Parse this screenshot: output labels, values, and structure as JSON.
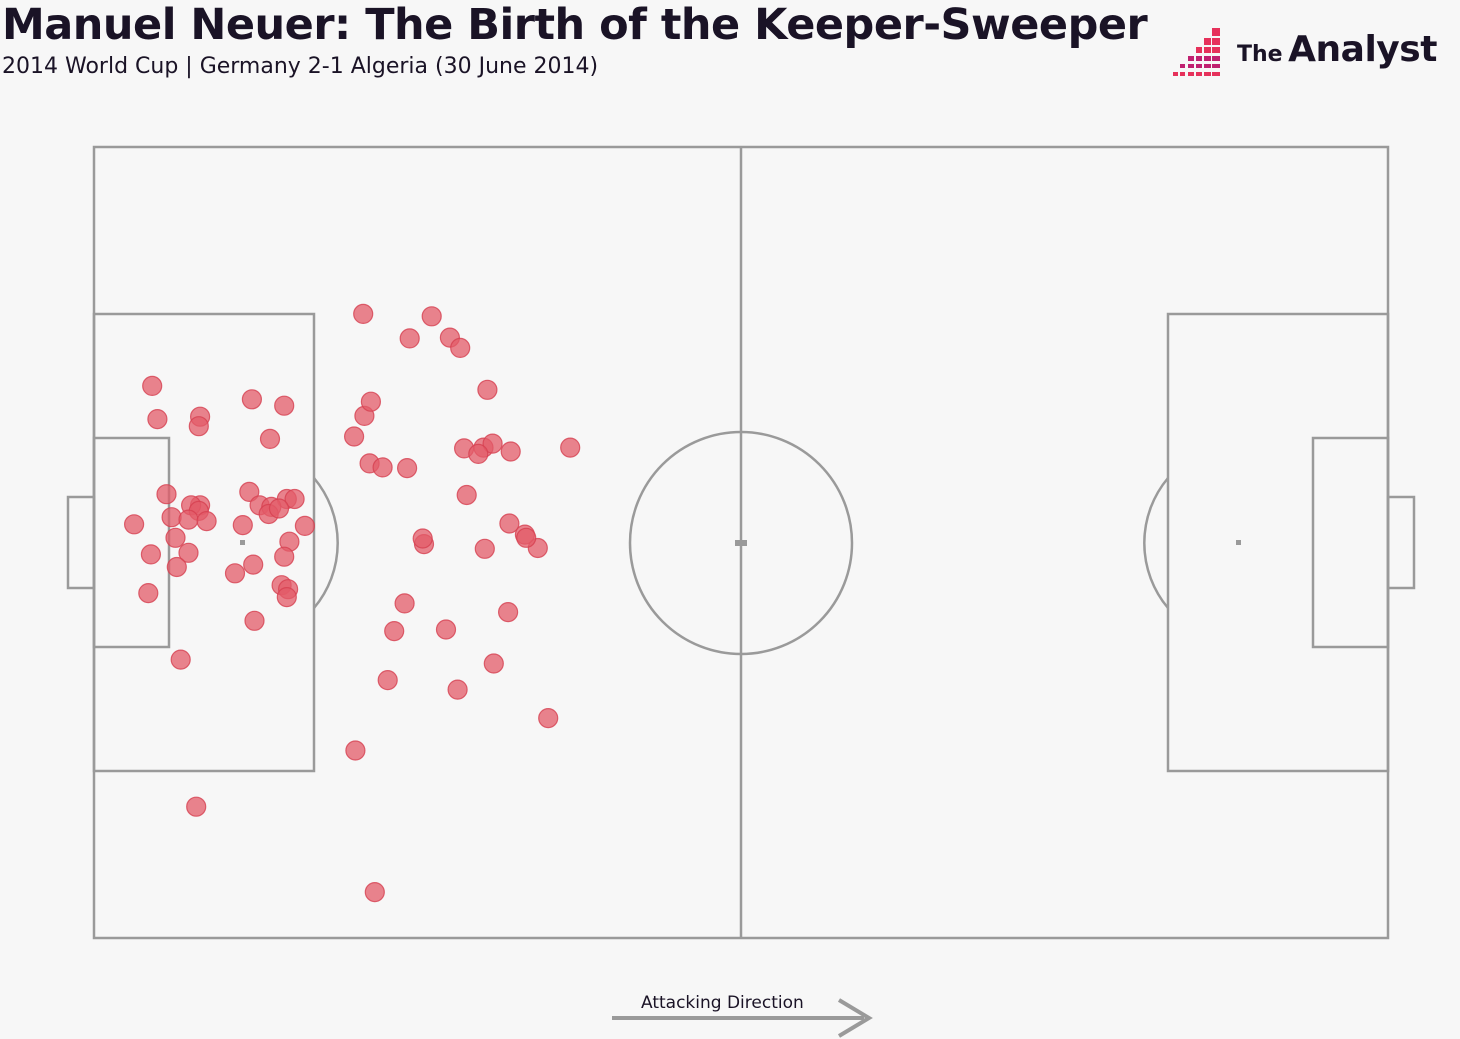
{
  "header": {
    "title": "Manuel Neuer: The Birth of the Keeper-Sweeper",
    "subtitle": "2014 World Cup | Germany 2-1 Algeria (30 June 2014)"
  },
  "logo": {
    "word1": "The",
    "word2": "Analyst",
    "icon": "bar-blocks-logo-icon",
    "color_primary": "#e6315b",
    "color_secondary": "#c02070"
  },
  "footer": {
    "attacking_direction_label": "Attacking Direction",
    "icon": "arrow-right-icon"
  },
  "colors": {
    "background": "#f7f7f7",
    "pitch_lines": "#9a9a9a",
    "marker_fill": "#e35b68",
    "marker_stroke": "#d64050"
  },
  "chart_data": {
    "type": "scatter",
    "background": "football pitch (horizontal)",
    "pitch": {
      "x_range": [
        0,
        100
      ],
      "y_range": [
        0,
        100
      ]
    },
    "points": [
      {
        "x": 20.8,
        "y": 78.9
      },
      {
        "x": 26.1,
        "y": 78.6
      },
      {
        "x": 24.4,
        "y": 75.8
      },
      {
        "x": 4.5,
        "y": 69.8
      },
      {
        "x": 12.2,
        "y": 68.1
      },
      {
        "x": 14.7,
        "y": 67.3
      },
      {
        "x": 4.9,
        "y": 65.6
      },
      {
        "x": 8.2,
        "y": 65.9
      },
      {
        "x": 8.1,
        "y": 64.7
      },
      {
        "x": 20.9,
        "y": 66.0
      },
      {
        "x": 13.6,
        "y": 63.1
      },
      {
        "x": 20.1,
        "y": 63.4
      },
      {
        "x": 30.1,
        "y": 62.0
      },
      {
        "x": 21.3,
        "y": 60.0
      },
      {
        "x": 22.3,
        "y": 59.5
      },
      {
        "x": 24.2,
        "y": 59.4
      },
      {
        "x": 5.6,
        "y": 56.1
      },
      {
        "x": 12.0,
        "y": 56.4
      },
      {
        "x": 14.9,
        "y": 55.5
      },
      {
        "x": 8.2,
        "y": 54.7
      },
      {
        "x": 7.5,
        "y": 54.7
      },
      {
        "x": 8.1,
        "y": 54.0
      },
      {
        "x": 6.0,
        "y": 53.2
      },
      {
        "x": 12.8,
        "y": 54.7
      },
      {
        "x": 13.7,
        "y": 54.5
      },
      {
        "x": 15.5,
        "y": 55.5
      },
      {
        "x": 13.5,
        "y": 53.6
      },
      {
        "x": 7.3,
        "y": 52.9
      },
      {
        "x": 8.7,
        "y": 52.7
      },
      {
        "x": 3.1,
        "y": 52.3
      },
      {
        "x": 11.5,
        "y": 52.2
      },
      {
        "x": 16.3,
        "y": 52.1
      },
      {
        "x": 14.3,
        "y": 54.3
      },
      {
        "x": 6.3,
        "y": 50.6
      },
      {
        "x": 15.1,
        "y": 50.1
      },
      {
        "x": 4.4,
        "y": 48.5
      },
      {
        "x": 7.3,
        "y": 48.7
      },
      {
        "x": 14.7,
        "y": 48.2
      },
      {
        "x": 12.3,
        "y": 47.2
      },
      {
        "x": 14.5,
        "y": 44.6
      },
      {
        "x": 10.9,
        "y": 46.1
      },
      {
        "x": 6.4,
        "y": 46.9
      },
      {
        "x": 4.2,
        "y": 43.6
      },
      {
        "x": 15.0,
        "y": 44.1
      },
      {
        "x": 12.4,
        "y": 40.1
      },
      {
        "x": 6.7,
        "y": 35.2
      },
      {
        "x": 7.9,
        "y": 16.6
      },
      {
        "x": 27.5,
        "y": 75.9
      },
      {
        "x": 28.3,
        "y": 74.6
      },
      {
        "x": 21.4,
        "y": 67.8
      },
      {
        "x": 30.8,
        "y": 62.5
      },
      {
        "x": 28.6,
        "y": 61.9
      },
      {
        "x": 29.7,
        "y": 61.2
      },
      {
        "x": 30.2,
        "y": 49.2
      },
      {
        "x": 25.5,
        "y": 49.8
      },
      {
        "x": 32.1,
        "y": 52.4
      },
      {
        "x": 27.2,
        "y": 39.0
      },
      {
        "x": 23.2,
        "y": 38.8
      },
      {
        "x": 32.0,
        "y": 41.2
      },
      {
        "x": 22.7,
        "y": 32.6
      },
      {
        "x": 34.3,
        "y": 49.3
      },
      {
        "x": 33.3,
        "y": 51.0
      },
      {
        "x": 36.8,
        "y": 62.0
      },
      {
        "x": 28.8,
        "y": 56.0
      },
      {
        "x": 33.4,
        "y": 50.6
      },
      {
        "x": 28.1,
        "y": 31.4
      },
      {
        "x": 14.9,
        "y": 43.1
      },
      {
        "x": 30.4,
        "y": 69.3
      },
      {
        "x": 32.2,
        "y": 61.5
      },
      {
        "x": 20.2,
        "y": 23.7
      },
      {
        "x": 35.1,
        "y": 27.8
      },
      {
        "x": 21.7,
        "y": 5.8
      },
      {
        "x": 24.0,
        "y": 42.3
      },
      {
        "x": 30.9,
        "y": 34.7
      },
      {
        "x": 25.4,
        "y": 50.5
      }
    ]
  }
}
